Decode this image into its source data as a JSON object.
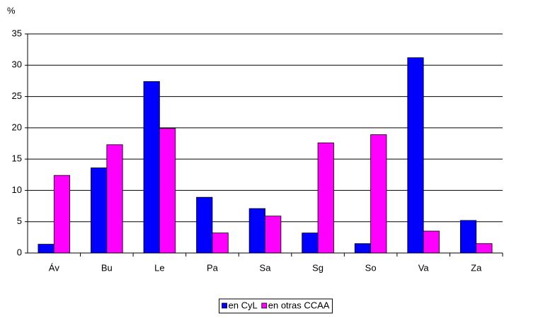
{
  "chart_data": {
    "type": "bar",
    "y_label": "%",
    "categories": [
      "Áv",
      "Bu",
      "Le",
      "Pa",
      "Sa",
      "Sg",
      "So",
      "Va",
      "Za"
    ],
    "series": [
      {
        "name": "en CyL",
        "color": "#0000ff",
        "values": [
          1.4,
          13.6,
          27.4,
          8.9,
          7.1,
          3.2,
          1.5,
          31.2,
          5.2
        ]
      },
      {
        "name": "en otras CCAA",
        "color": "#ff00ff",
        "values": [
          12.4,
          17.3,
          19.9,
          3.2,
          5.9,
          17.6,
          18.9,
          3.5,
          1.5
        ]
      }
    ],
    "ylim": [
      0,
      35
    ],
    "yticks": [
      0,
      5,
      10,
      15,
      20,
      25,
      30,
      35
    ],
    "grid": true,
    "legend": "bottom"
  }
}
